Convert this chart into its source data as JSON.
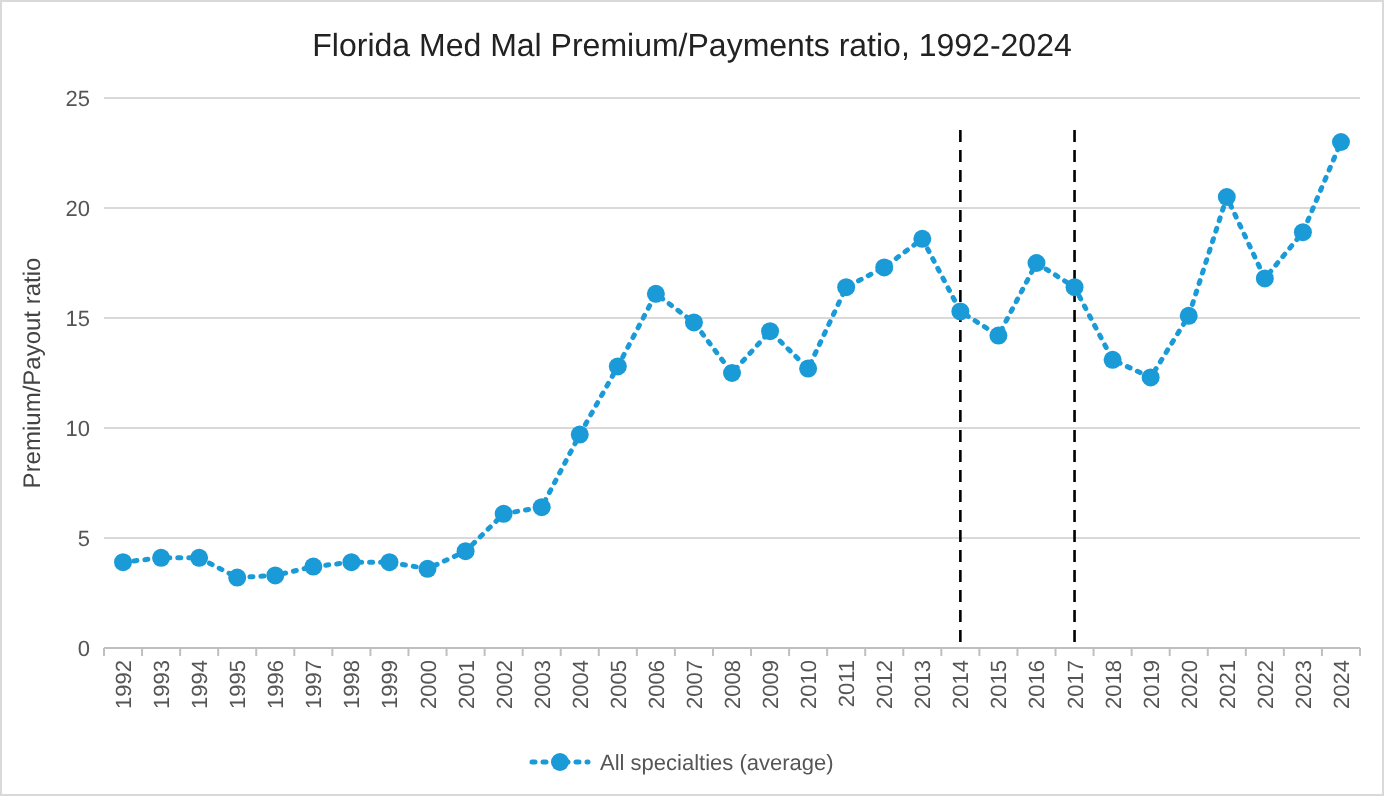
{
  "chart_data": {
    "type": "line",
    "title": "Florida Med Mal Premium/Payments ratio, 1992-2024",
    "ylabel": "Premium/Payout ratio",
    "categories": [
      "1992",
      "1993",
      "1994",
      "1995",
      "1996",
      "1997",
      "1998",
      "1999",
      "2000",
      "2001",
      "2002",
      "2003",
      "2004",
      "2005",
      "2006",
      "2007",
      "2008",
      "2009",
      "2010",
      "2011",
      "2012",
      "2013",
      "2014",
      "2015",
      "2016",
      "2017",
      "2018",
      "2019",
      "2020",
      "2021",
      "2022",
      "2023",
      "2024"
    ],
    "series": [
      {
        "name": "All specialties (average)",
        "color": "#1a9bd7",
        "values": [
          3.9,
          4.1,
          4.1,
          3.2,
          3.3,
          3.7,
          3.9,
          3.9,
          3.6,
          4.4,
          6.1,
          6.4,
          9.7,
          12.8,
          16.1,
          14.8,
          12.5,
          14.4,
          12.7,
          16.4,
          17.3,
          18.6,
          15.3,
          14.2,
          17.5,
          16.4,
          13.1,
          12.3,
          15.1,
          20.5,
          16.8,
          18.9,
          23.0
        ]
      }
    ],
    "ylim": [
      0,
      25
    ],
    "yticks": [
      0,
      5,
      10,
      15,
      20,
      25
    ],
    "grid": "y",
    "legend": "bottom",
    "marker": "circle",
    "line_style": "dotted",
    "ref_lines": [
      {
        "axis": "x",
        "value": "2014",
        "color": "#000000",
        "line_style": "dashed"
      },
      {
        "axis": "x",
        "value": "2017",
        "color": "#000000",
        "line_style": "dashed"
      }
    ]
  }
}
